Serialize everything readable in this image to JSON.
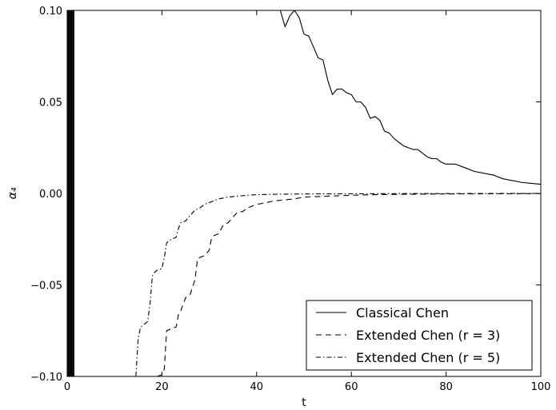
{
  "chart_data": {
    "type": "line",
    "xlabel": "t",
    "ylabel": "α₄",
    "xlim": [
      0,
      100
    ],
    "ylim": [
      -0.1,
      0.1
    ],
    "x_ticks": [
      "0",
      "20",
      "40",
      "60",
      "80",
      "100"
    ],
    "y_ticks": [
      "−0.10",
      "−0.05",
      "0.00",
      "0.05",
      "0.10"
    ],
    "legend_position": "lower-right",
    "series": [
      {
        "name": "Classical Chen",
        "style": "solid",
        "color": "#000000",
        "points": [
          [
            45,
            0.1
          ],
          [
            46,
            0.091
          ],
          [
            47,
            0.097
          ],
          [
            48,
            0.1
          ],
          [
            49,
            0.096
          ],
          [
            50,
            0.087
          ],
          [
            51,
            0.086
          ],
          [
            52,
            0.08
          ],
          [
            53,
            0.074
          ],
          [
            54,
            0.073
          ],
          [
            55,
            0.062
          ],
          [
            56,
            0.054
          ],
          [
            57,
            0.057
          ],
          [
            58,
            0.057
          ],
          [
            59,
            0.055
          ],
          [
            60,
            0.054
          ],
          [
            61,
            0.05
          ],
          [
            62,
            0.05
          ],
          [
            63,
            0.047
          ],
          [
            64,
            0.041
          ],
          [
            65,
            0.042
          ],
          [
            66,
            0.04
          ],
          [
            67,
            0.034
          ],
          [
            68,
            0.033
          ],
          [
            69,
            0.03
          ],
          [
            70,
            0.028
          ],
          [
            71,
            0.026
          ],
          [
            72,
            0.025
          ],
          [
            73,
            0.024
          ],
          [
            74,
            0.024
          ],
          [
            75,
            0.022
          ],
          [
            76,
            0.02
          ],
          [
            77,
            0.019
          ],
          [
            78,
            0.019
          ],
          [
            79,
            0.017
          ],
          [
            80,
            0.016
          ],
          [
            82,
            0.016
          ],
          [
            84,
            0.014
          ],
          [
            86,
            0.012
          ],
          [
            88,
            0.011
          ],
          [
            90,
            0.01
          ],
          [
            92,
            0.008
          ],
          [
            94,
            0.007
          ],
          [
            96,
            0.006
          ],
          [
            98,
            0.0055
          ],
          [
            100,
            0.005
          ]
        ]
      },
      {
        "name": "Extended Chen (r = 3)",
        "style": "dashed",
        "color": "#000000",
        "points": [
          [
            19,
            -0.1
          ],
          [
            20,
            -0.099
          ],
          [
            20.5,
            -0.096
          ],
          [
            21,
            -0.075
          ],
          [
            22,
            -0.074
          ],
          [
            23,
            -0.073
          ],
          [
            23.5,
            -0.066
          ],
          [
            24,
            -0.064
          ],
          [
            25,
            -0.057
          ],
          [
            26,
            -0.055
          ],
          [
            27,
            -0.047
          ],
          [
            27.5,
            -0.036
          ],
          [
            28,
            -0.035
          ],
          [
            29,
            -0.034
          ],
          [
            30,
            -0.031
          ],
          [
            30.5,
            -0.024
          ],
          [
            31,
            -0.023
          ],
          [
            32,
            -0.022
          ],
          [
            33,
            -0.017
          ],
          [
            34,
            -0.016
          ],
          [
            35,
            -0.013
          ],
          [
            36,
            -0.01
          ],
          [
            37,
            -0.01
          ],
          [
            38,
            -0.008
          ],
          [
            39,
            -0.007
          ],
          [
            40,
            -0.006
          ],
          [
            42,
            -0.005
          ],
          [
            44,
            -0.004
          ],
          [
            46,
            -0.0035
          ],
          [
            48,
            -0.003
          ],
          [
            50,
            -0.002
          ],
          [
            55,
            -0.0015
          ],
          [
            60,
            -0.001
          ],
          [
            65,
            -0.0007
          ],
          [
            70,
            -0.0005
          ],
          [
            80,
            -0.0003
          ],
          [
            90,
            -0.0002
          ],
          [
            100,
            -0.0001
          ]
        ]
      },
      {
        "name": "Extended Chen (r = 5)",
        "style": "dashdot",
        "color": "#000000",
        "points": [
          [
            14.5,
            -0.1
          ],
          [
            15,
            -0.079
          ],
          [
            15.5,
            -0.073
          ],
          [
            16,
            -0.072
          ],
          [
            17,
            -0.07
          ],
          [
            17.5,
            -0.06
          ],
          [
            18,
            -0.045
          ],
          [
            18.5,
            -0.043
          ],
          [
            19,
            -0.042
          ],
          [
            20,
            -0.041
          ],
          [
            20.5,
            -0.035
          ],
          [
            21,
            -0.027
          ],
          [
            22,
            -0.025
          ],
          [
            23,
            -0.024
          ],
          [
            23.5,
            -0.019
          ],
          [
            24,
            -0.016
          ],
          [
            25,
            -0.015
          ],
          [
            26,
            -0.012
          ],
          [
            27,
            -0.009
          ],
          [
            28,
            -0.008
          ],
          [
            29,
            -0.006
          ],
          [
            30,
            -0.005
          ],
          [
            31,
            -0.004
          ],
          [
            32,
            -0.003
          ],
          [
            34,
            -0.002
          ],
          [
            36,
            -0.0015
          ],
          [
            38,
            -0.001
          ],
          [
            40,
            -0.0007
          ],
          [
            45,
            -0.0004
          ],
          [
            50,
            -0.0003
          ],
          [
            60,
            -0.0002
          ],
          [
            70,
            -0.0001
          ],
          [
            100,
            0.0
          ]
        ]
      }
    ],
    "oscillation_region": {
      "x_start": 0,
      "x_end": 1.5
    }
  }
}
